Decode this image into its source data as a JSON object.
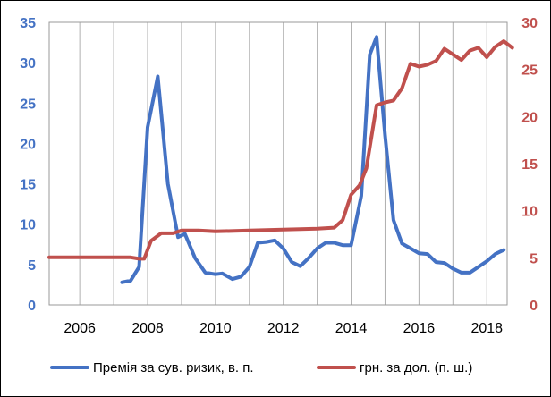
{
  "chart_data": {
    "type": "line",
    "title": "",
    "xlabel": "",
    "ylabel_left": "",
    "ylabel_right": "",
    "x_ticks": [
      "2006",
      "2008",
      "2010",
      "2012",
      "2014",
      "2016",
      "2018"
    ],
    "x_range": [
      2005.1,
      2018.6
    ],
    "left_axis": {
      "range": [
        0,
        35
      ],
      "ticks": [
        "0",
        "5",
        "10",
        "15",
        "20",
        "25",
        "30",
        "35"
      ],
      "color": "#4472C4"
    },
    "right_axis": {
      "range": [
        0,
        30
      ],
      "ticks": [
        "0",
        "5",
        "10",
        "15",
        "20",
        "25",
        "30"
      ],
      "color": "#C0504D"
    },
    "grid": "vertical",
    "legend_position": "bottom",
    "series": [
      {
        "name": "Премія за сув. ризик, в. п.",
        "axis": "left",
        "color": "#4472C4",
        "points": [
          [
            2007.25,
            2.8
          ],
          [
            2007.5,
            3.0
          ],
          [
            2007.75,
            4.7
          ],
          [
            2008.0,
            22.0
          ],
          [
            2008.3,
            28.3
          ],
          [
            2008.6,
            15.0
          ],
          [
            2008.9,
            8.4
          ],
          [
            2009.1,
            8.8
          ],
          [
            2009.4,
            5.8
          ],
          [
            2009.7,
            4.0
          ],
          [
            2010.0,
            3.8
          ],
          [
            2010.2,
            3.9
          ],
          [
            2010.5,
            3.2
          ],
          [
            2010.75,
            3.5
          ],
          [
            2011.0,
            4.7
          ],
          [
            2011.25,
            7.7
          ],
          [
            2011.5,
            7.8
          ],
          [
            2011.75,
            8.0
          ],
          [
            2012.0,
            7.0
          ],
          [
            2012.25,
            5.3
          ],
          [
            2012.5,
            4.8
          ],
          [
            2012.75,
            5.8
          ],
          [
            2013.0,
            7.0
          ],
          [
            2013.25,
            7.7
          ],
          [
            2013.5,
            7.7
          ],
          [
            2013.75,
            7.4
          ],
          [
            2014.0,
            7.4
          ],
          [
            2014.3,
            13.5
          ],
          [
            2014.55,
            31.0
          ],
          [
            2014.75,
            33.2
          ],
          [
            2015.0,
            21.0
          ],
          [
            2015.25,
            10.5
          ],
          [
            2015.5,
            7.6
          ],
          [
            2015.75,
            7.0
          ],
          [
            2016.0,
            6.4
          ],
          [
            2016.25,
            6.3
          ],
          [
            2016.5,
            5.3
          ],
          [
            2016.75,
            5.2
          ],
          [
            2017.0,
            4.5
          ],
          [
            2017.25,
            4.0
          ],
          [
            2017.5,
            4.0
          ],
          [
            2017.75,
            4.7
          ],
          [
            2018.0,
            5.4
          ],
          [
            2018.25,
            6.3
          ],
          [
            2018.5,
            6.8
          ]
        ]
      },
      {
        "name": "грн. за дол. (п. ш.)",
        "axis": "right",
        "color": "#C0504D",
        "points": [
          [
            2005.1,
            5.05
          ],
          [
            2006.0,
            5.05
          ],
          [
            2007.0,
            5.05
          ],
          [
            2007.5,
            5.05
          ],
          [
            2007.75,
            4.9
          ],
          [
            2007.9,
            4.9
          ],
          [
            2008.1,
            6.8
          ],
          [
            2008.4,
            7.6
          ],
          [
            2008.75,
            7.6
          ],
          [
            2009.0,
            7.9
          ],
          [
            2009.5,
            7.9
          ],
          [
            2010.0,
            7.8
          ],
          [
            2011.0,
            7.9
          ],
          [
            2012.0,
            8.0
          ],
          [
            2013.0,
            8.1
          ],
          [
            2013.5,
            8.2
          ],
          [
            2013.75,
            9.0
          ],
          [
            2014.0,
            11.7
          ],
          [
            2014.25,
            12.7
          ],
          [
            2014.45,
            14.5
          ],
          [
            2014.75,
            21.2
          ],
          [
            2015.0,
            21.5
          ],
          [
            2015.25,
            21.7
          ],
          [
            2015.5,
            23.0
          ],
          [
            2015.75,
            25.6
          ],
          [
            2016.0,
            25.3
          ],
          [
            2016.25,
            25.5
          ],
          [
            2016.5,
            25.9
          ],
          [
            2016.75,
            27.2
          ],
          [
            2017.0,
            26.6
          ],
          [
            2017.25,
            26.0
          ],
          [
            2017.5,
            27.0
          ],
          [
            2017.75,
            27.3
          ],
          [
            2018.0,
            26.3
          ],
          [
            2018.25,
            27.4
          ],
          [
            2018.5,
            28.0
          ],
          [
            2018.75,
            27.3
          ]
        ]
      }
    ]
  }
}
